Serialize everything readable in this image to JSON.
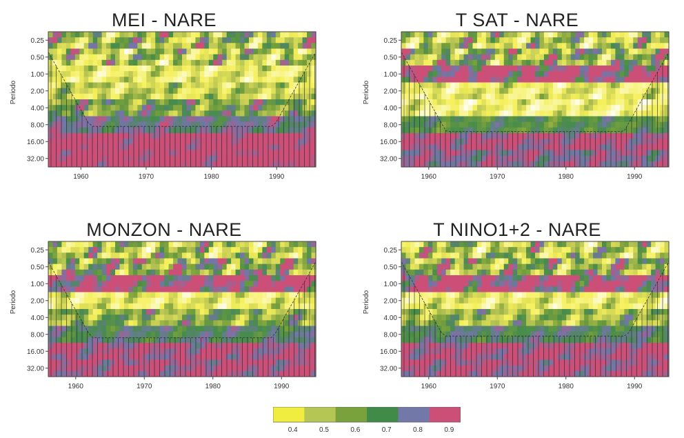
{
  "chart_data": [
    {
      "type": "heatmap",
      "title": "MEI - NARE",
      "ylabel": "Periodo",
      "y_ticks": [
        "0.25",
        "0.50",
        "1.00",
        "2.00",
        "4.00",
        "8.00",
        "16.00",
        "32.00"
      ],
      "x_ticks": [
        1960,
        1970,
        1980,
        1990
      ],
      "xlim": [
        1955,
        1996
      ],
      "bands": [
        0.55,
        0.5,
        0.35,
        0.45,
        0.65,
        0.8,
        0.95,
        0.95
      ],
      "coi_floor": 5.6,
      "coi_left": 1955,
      "coi_right": 1996
    },
    {
      "type": "heatmap",
      "title": "T SAT - NARE",
      "ylabel": "Periodo",
      "y_ticks": [
        "0.25",
        "0.50",
        "1.00",
        "2.00",
        "4.00",
        "8.00",
        "16.00",
        "32.00"
      ],
      "x_ticks": [
        1960,
        1970,
        1980,
        1990
      ],
      "xlim": [
        1956,
        1995
      ],
      "bands": [
        0.5,
        0.6,
        0.92,
        0.35,
        0.3,
        0.7,
        0.9,
        0.85
      ],
      "coi_floor": 5.9,
      "coi_left": 1956,
      "coi_right": 1995
    },
    {
      "type": "heatmap",
      "title": "MONZON - NARE",
      "ylabel": "Periodo",
      "y_ticks": [
        "0.25",
        "0.50",
        "1.00",
        "2.00",
        "4.00",
        "8.00",
        "16.00",
        "32.00"
      ],
      "x_ticks": [
        1960,
        1970,
        1980,
        1990
      ],
      "xlim": [
        1956,
        1995
      ],
      "bands": [
        0.5,
        0.65,
        0.92,
        0.35,
        0.6,
        0.75,
        0.9,
        0.9
      ],
      "coi_floor": 5.7,
      "coi_left": 1956,
      "coi_right": 1995
    },
    {
      "type": "heatmap",
      "title": "T NINO1+2 - NARE",
      "ylabel": "Periodo",
      "y_ticks": [
        "0.25",
        "0.50",
        "1.00",
        "2.00",
        "4.00",
        "8.00",
        "16.00",
        "32.00"
      ],
      "x_ticks": [
        1960,
        1970,
        1980,
        1990
      ],
      "xlim": [
        1956,
        1995
      ],
      "bands": [
        0.5,
        0.6,
        0.92,
        0.35,
        0.55,
        0.75,
        0.9,
        0.9
      ],
      "coi_floor": 5.6,
      "coi_left": 1956,
      "coi_right": 1995
    }
  ],
  "legend": {
    "labels": [
      "0.4",
      "0.5",
      "0.6",
      "0.7",
      "0.8",
      "0.9"
    ],
    "colors": [
      "#f0ec40",
      "#b6c654",
      "#7aa23c",
      "#3f8b47",
      "#7278a8",
      "#cc4f78"
    ]
  }
}
